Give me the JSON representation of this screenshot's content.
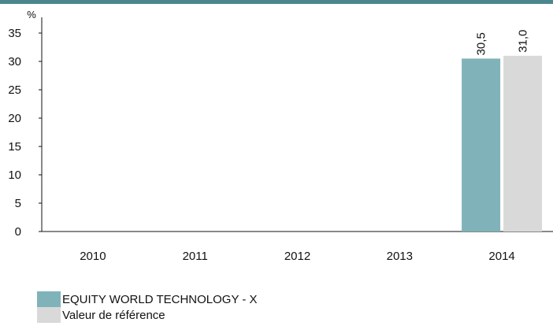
{
  "colors": {
    "top_band": "#4c868d",
    "axis": "#111111",
    "text": "#111111"
  },
  "chart_data": {
    "type": "bar",
    "categories": [
      "2010",
      "2011",
      "2012",
      "2013",
      "2014"
    ],
    "series": [
      {
        "name": "EQUITY WORLD TECHNOLOGY - X",
        "color": "#7fb3b9",
        "values": [
          null,
          null,
          null,
          null,
          30.5
        ],
        "labels": [
          "",
          "",
          "",
          "",
          "30,5"
        ]
      },
      {
        "name": "Valeur de référence",
        "color": "#d9d9d9",
        "values": [
          null,
          null,
          null,
          null,
          31.0
        ],
        "labels": [
          "",
          "",
          "",
          "",
          "31,0"
        ]
      }
    ],
    "ylabel": "%",
    "ylim": [
      0,
      35
    ],
    "yticks": [
      0,
      5,
      10,
      15,
      20,
      25,
      30,
      35
    ],
    "ytick_labels": [
      "0",
      "5",
      "10",
      "15",
      "20",
      "25",
      "30",
      "35"
    ],
    "grid": false,
    "legend_position": "bottom-left"
  }
}
